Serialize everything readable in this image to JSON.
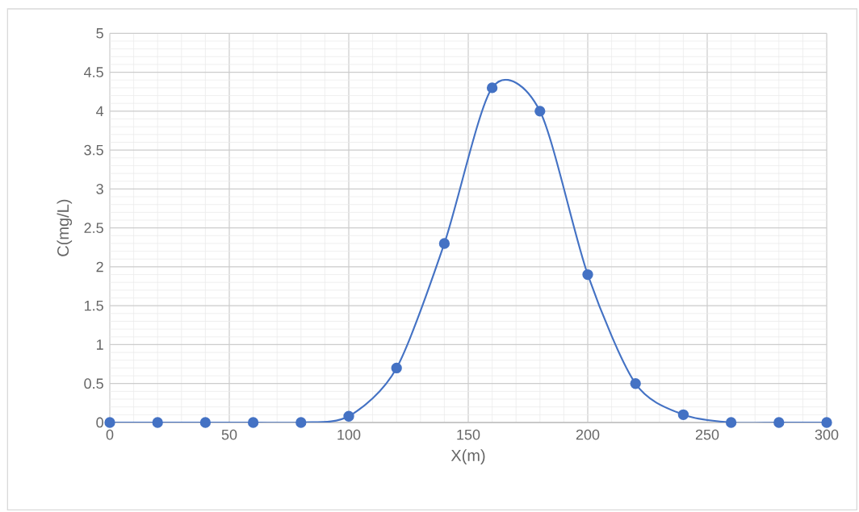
{
  "chart_data": {
    "type": "line",
    "xlabel": "X(m)",
    "ylabel": "C(mg/L)",
    "x": [
      0,
      20,
      40,
      60,
      80,
      100,
      120,
      140,
      160,
      180,
      200,
      220,
      240,
      260,
      280,
      300
    ],
    "series": [
      {
        "color": "#4472c4",
        "values": [
          0,
          0,
          0,
          0,
          0,
          0.08,
          0.7,
          2.3,
          4.3,
          4.0,
          1.9,
          0.5,
          0.1,
          0,
          0,
          0
        ]
      }
    ],
    "xlim": [
      0,
      300
    ],
    "xticks": [
      0,
      50,
      100,
      150,
      200,
      250,
      300
    ],
    "ylim": [
      0,
      5
    ],
    "yticks": [
      0,
      0.5,
      1,
      1.5,
      2,
      2.5,
      3,
      3.5,
      4,
      4.5,
      5
    ],
    "grid": true,
    "marker": "circle",
    "line_style": "solid"
  }
}
